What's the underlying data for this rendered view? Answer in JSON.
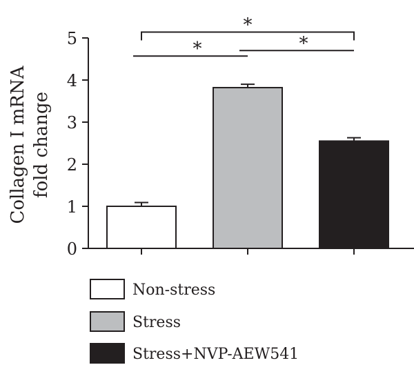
{
  "chart_data": {
    "type": "bar",
    "categories": [
      "Non-stress",
      "Stress",
      "Stress+NVP-AEW541"
    ],
    "values": [
      1.0,
      3.82,
      2.55
    ],
    "errors": [
      0.09,
      0.08,
      0.08
    ],
    "colors": [
      "#ffffff",
      "#bcbec0",
      "#231f20"
    ],
    "edge_color": "#231f20",
    "ylabel_lines": [
      "Collagen I mRNA",
      "fold change"
    ],
    "ylim": [
      0,
      5
    ],
    "yticks": [
      0,
      1,
      2,
      3,
      4,
      5
    ],
    "grid": false,
    "legend": {
      "placement": "bottom",
      "entries": [
        "Non-stress",
        "Stress",
        "Stress+NVP-AEW541"
      ]
    },
    "significance": [
      {
        "from": 0,
        "to": 1,
        "label": "*",
        "style": "line",
        "level": 4.57
      },
      {
        "from": 1,
        "to": 2,
        "label": "*",
        "style": "line",
        "level": 4.7
      },
      {
        "from": 0,
        "to": 2,
        "label": "*",
        "style": "bracket",
        "level": 5.14
      }
    ]
  }
}
